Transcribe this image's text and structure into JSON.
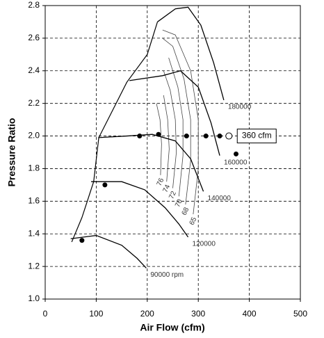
{
  "chart_data": {
    "type": "line",
    "x_label": "Air Flow (cfm)",
    "y_label": "Pressure Ratio",
    "xlim": [
      0,
      500
    ],
    "xticks": [
      0,
      100,
      200,
      300,
      400,
      500
    ],
    "ylim": [
      1,
      2.8
    ],
    "yticks": [
      {
        "value": 1,
        "label": "1.0"
      },
      1.2,
      1.4,
      1.6,
      1.8,
      {
        "value": 2,
        "label": "2.0"
      },
      2.2,
      2.4,
      2.6,
      2.8
    ],
    "grid": true,
    "series": [
      {
        "name": "90000 rpm",
        "color": "#000000",
        "x": [
          50,
          100,
          150,
          180,
          198
        ],
        "y": [
          1.37,
          1.39,
          1.33,
          1.25,
          1.19
        ]
      },
      {
        "name": "120000",
        "color": "#000000",
        "x": [
          90,
          150,
          195,
          235,
          262,
          280
        ],
        "y": [
          1.72,
          1.72,
          1.67,
          1.56,
          1.46,
          1.38
        ]
      },
      {
        "name": "140000",
        "color": "#000000",
        "x": [
          104,
          160,
          210,
          255,
          285,
          310
        ],
        "y": [
          1.99,
          2.0,
          2.01,
          1.97,
          1.86,
          1.66
        ]
      },
      {
        "name": "160000",
        "color": "#000000",
        "x": [
          165,
          230,
          265,
          300,
          325,
          342
        ],
        "y": [
          2.34,
          2.37,
          2.4,
          2.3,
          2.08,
          1.88
        ]
      },
      {
        "name": "180000",
        "color": "#000000",
        "x": [
          220,
          255,
          280,
          305,
          330,
          350
        ],
        "y": [
          2.7,
          2.78,
          2.79,
          2.68,
          2.45,
          2.22
        ]
      }
    ],
    "surge_line": {
      "x": [
        52,
        72,
        95,
        105,
        160,
        200,
        220
      ],
      "y": [
        1.35,
        1.5,
        1.72,
        1.99,
        2.33,
        2.5,
        2.7
      ]
    },
    "efficiency_contours": [
      {
        "label": "76",
        "x": [
          226,
          228,
          225,
          218
        ],
        "y": [
          1.76,
          1.95,
          2.1,
          2.2
        ]
      },
      {
        "label": "74",
        "x": [
          238,
          243,
          240,
          232
        ],
        "y": [
          1.72,
          1.92,
          2.1,
          2.25
        ]
      },
      {
        "label": "72",
        "x": [
          250,
          257,
          255,
          245,
          232
        ],
        "y": [
          1.68,
          1.9,
          2.1,
          2.28,
          2.4
        ]
      },
      {
        "label": "70",
        "x": [
          262,
          270,
          270,
          260,
          242
        ],
        "y": [
          1.63,
          1.88,
          2.1,
          2.3,
          2.48
        ]
      },
      {
        "label": "68",
        "x": [
          275,
          285,
          285,
          272,
          250,
          230
        ],
        "y": [
          1.58,
          1.85,
          2.1,
          2.35,
          2.55,
          2.6
        ]
      },
      {
        "label": "65",
        "x": [
          290,
          300,
          300,
          285,
          255,
          230
        ],
        "y": [
          1.52,
          1.8,
          2.1,
          2.4,
          2.62,
          2.65
        ]
      }
    ],
    "points": {
      "x": [
        72,
        117,
        185,
        222,
        277,
        315,
        342,
        374
      ],
      "y": [
        1.36,
        1.7,
        2.0,
        2.01,
        2.0,
        2.0,
        2.0,
        1.89
      ]
    },
    "operating_point": {
      "x": 360,
      "y": 2.0,
      "label": "360 cfm"
    }
  }
}
